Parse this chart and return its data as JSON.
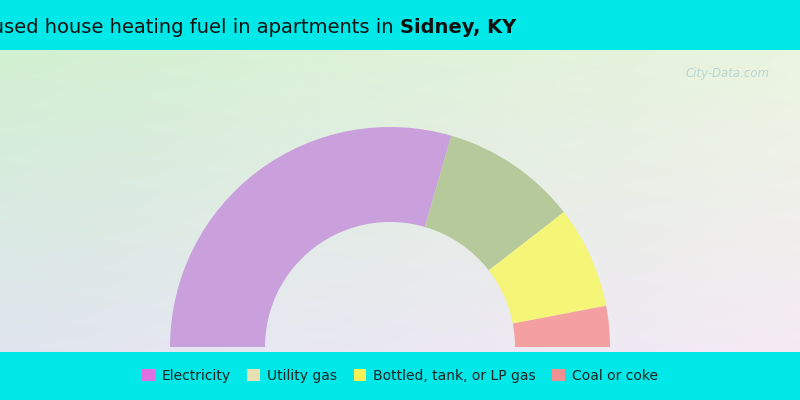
{
  "title_prefix": "Most commonly used house heating fuel in apartments in ",
  "title_bold": "Sidney, KY",
  "segments": [
    {
      "label": "Electricity",
      "value": 59,
      "color": "#c9a0dc"
    },
    {
      "label": "Utility gas",
      "value": 20,
      "color": "#b5c99a"
    },
    {
      "label": "Bottled, tank, or LP gas",
      "value": 15,
      "color": "#f5f577"
    },
    {
      "label": "Coal or coke",
      "value": 6,
      "color": "#f4a0a0"
    }
  ],
  "legend_colors": [
    "#e070e0",
    "#e8e0b0",
    "#f5f055",
    "#f09090"
  ],
  "bg_outer_color": "#00e8e8",
  "watermark": "City-Data.com",
  "title_fontsize": 14,
  "legend_fontsize": 10,
  "gradient_tl": [
    0.82,
    0.94,
    0.82
  ],
  "gradient_tr": [
    0.92,
    0.96,
    0.88
  ],
  "gradient_bl": [
    0.88,
    0.9,
    0.94
  ],
  "gradient_br": [
    0.96,
    0.92,
    0.96
  ]
}
